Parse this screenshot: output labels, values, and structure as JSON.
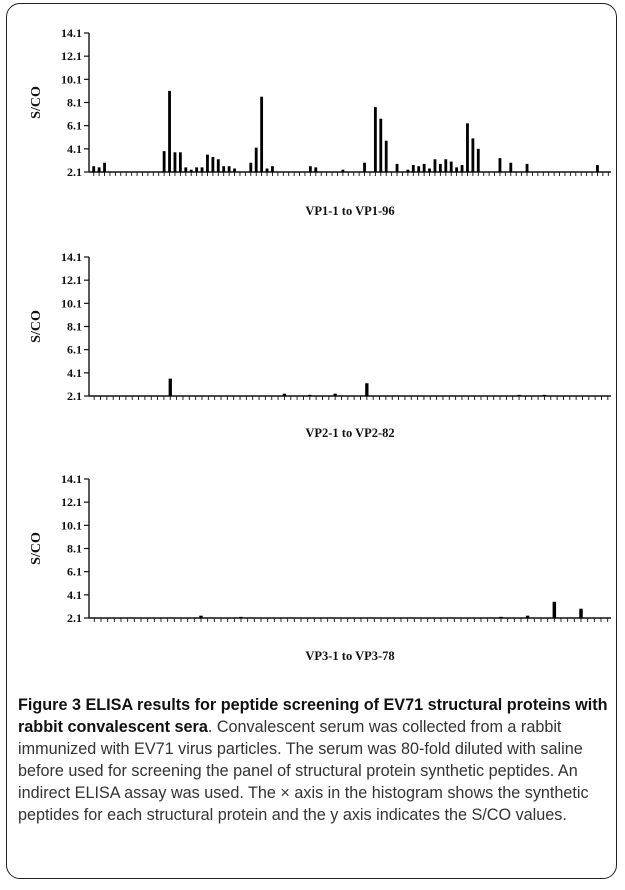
{
  "caption": {
    "label": "Figure 3",
    "title": "ELISA results for peptide screening of EV71 structural proteins with rabbit convalescent sera",
    "body": ". Convalescent serum was collected from a rabbit immunized with EV71 virus particles. The serum was 80-fold diluted with saline before used for screening the panel of structural protein synthetic peptides. An indirect ELISA assay was used. The × axis in the histogram shows the synthetic peptides for each structural protein and the y axis indicates the S/CO values."
  },
  "chart_data": [
    {
      "type": "bar",
      "xlabel": "VP1-1 to VP1-96",
      "ylabel": "S/CO",
      "yticks": [
        "2.1",
        "4.1",
        "6.1",
        "8.1",
        "10.1",
        "12.1",
        "14.1"
      ],
      "ylim": [
        2.1,
        14.1
      ],
      "n_peptides": 96,
      "bars": [
        {
          "peptide": 1,
          "value": 2.6
        },
        {
          "peptide": 2,
          "value": 2.5
        },
        {
          "peptide": 3,
          "value": 2.9
        },
        {
          "peptide": 14,
          "value": 3.9
        },
        {
          "peptide": 15,
          "value": 9.1
        },
        {
          "peptide": 16,
          "value": 3.8
        },
        {
          "peptide": 17,
          "value": 3.8
        },
        {
          "peptide": 18,
          "value": 2.5
        },
        {
          "peptide": 19,
          "value": 2.3
        },
        {
          "peptide": 20,
          "value": 2.5
        },
        {
          "peptide": 21,
          "value": 2.5
        },
        {
          "peptide": 22,
          "value": 3.6
        },
        {
          "peptide": 23,
          "value": 3.4
        },
        {
          "peptide": 24,
          "value": 3.2
        },
        {
          "peptide": 25,
          "value": 2.6
        },
        {
          "peptide": 26,
          "value": 2.6
        },
        {
          "peptide": 27,
          "value": 2.4
        },
        {
          "peptide": 30,
          "value": 2.9
        },
        {
          "peptide": 31,
          "value": 4.2
        },
        {
          "peptide": 32,
          "value": 8.6
        },
        {
          "peptide": 33,
          "value": 2.4
        },
        {
          "peptide": 34,
          "value": 2.6
        },
        {
          "peptide": 41,
          "value": 2.6
        },
        {
          "peptide": 42,
          "value": 2.5
        },
        {
          "peptide": 47,
          "value": 2.3
        },
        {
          "peptide": 51,
          "value": 2.9
        },
        {
          "peptide": 53,
          "value": 7.7
        },
        {
          "peptide": 54,
          "value": 6.7
        },
        {
          "peptide": 55,
          "value": 4.8
        },
        {
          "peptide": 57,
          "value": 2.8
        },
        {
          "peptide": 59,
          "value": 2.3
        },
        {
          "peptide": 60,
          "value": 2.7
        },
        {
          "peptide": 61,
          "value": 2.6
        },
        {
          "peptide": 62,
          "value": 2.8
        },
        {
          "peptide": 63,
          "value": 2.4
        },
        {
          "peptide": 64,
          "value": 3.2
        },
        {
          "peptide": 65,
          "value": 2.8
        },
        {
          "peptide": 66,
          "value": 3.2
        },
        {
          "peptide": 67,
          "value": 3.0
        },
        {
          "peptide": 68,
          "value": 2.5
        },
        {
          "peptide": 69,
          "value": 2.7
        },
        {
          "peptide": 70,
          "value": 6.3
        },
        {
          "peptide": 71,
          "value": 5.0
        },
        {
          "peptide": 72,
          "value": 4.1
        },
        {
          "peptide": 76,
          "value": 3.3
        },
        {
          "peptide": 78,
          "value": 2.9
        },
        {
          "peptide": 81,
          "value": 2.8
        },
        {
          "peptide": 94,
          "value": 2.7
        }
      ]
    },
    {
      "type": "bar",
      "xlabel": "VP2-1 to VP2-82",
      "ylabel": "S/CO",
      "yticks": [
        "2.1",
        "4.1",
        "6.1",
        "8.1",
        "10.1",
        "12.1",
        "14.1"
      ],
      "ylim": [
        2.1,
        14.1
      ],
      "n_peptides": 82,
      "bars": [
        {
          "peptide": 13,
          "value": 3.6
        },
        {
          "peptide": 31,
          "value": 2.3
        },
        {
          "peptide": 35,
          "value": 2.2
        },
        {
          "peptide": 39,
          "value": 2.3
        },
        {
          "peptide": 44,
          "value": 3.2
        },
        {
          "peptide": 68,
          "value": 2.2
        },
        {
          "peptide": 72,
          "value": 2.2
        }
      ]
    },
    {
      "type": "bar",
      "xlabel": "VP3-1 to VP3-78",
      "ylabel": "S/CO",
      "yticks": [
        "2.1",
        "4.1",
        "6.1",
        "8.1",
        "10.1",
        "12.1",
        "14.1"
      ],
      "ylim": [
        2.1,
        14.1
      ],
      "n_peptides": 78,
      "bars": [
        {
          "peptide": 17,
          "value": 2.3
        },
        {
          "peptide": 23,
          "value": 2.2
        },
        {
          "peptide": 62,
          "value": 2.2
        },
        {
          "peptide": 66,
          "value": 2.3
        },
        {
          "peptide": 70,
          "value": 3.5
        },
        {
          "peptide": 74,
          "value": 2.9
        }
      ]
    }
  ]
}
